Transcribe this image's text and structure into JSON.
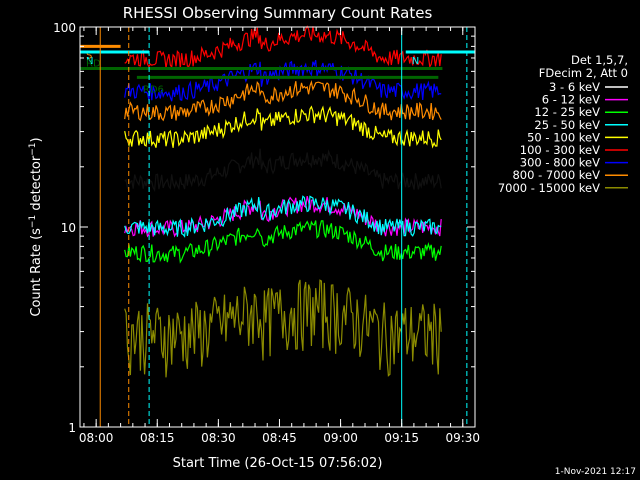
{
  "chart_data": {
    "type": "line",
    "title": "RHESSI Observing Summary Count Rates",
    "xlabel": "Start Time (26-Oct-15 07:56:02)",
    "ylabel_main": "Count Rate (s",
    "ylabel_exp1": "−1",
    "ylabel_mid": " detector",
    "ylabel_exp2": "−1",
    "ylabel_end": ")",
    "y_scale": "log",
    "ylim": [
      1,
      100
    ],
    "xlim": [
      "07:56:02",
      "09:33:00"
    ],
    "y_ticks": [
      {
        "value": 1,
        "label": "1"
      },
      {
        "value": 10,
        "label": "10"
      },
      {
        "value": 100,
        "label": "100"
      }
    ],
    "x_ticks": [
      {
        "value": "08:00",
        "label": "08:00"
      },
      {
        "value": "08:15",
        "label": "08:15"
      },
      {
        "value": "08:30",
        "label": "08:30"
      },
      {
        "value": "08:45",
        "label": "08:45"
      },
      {
        "value": "09:00",
        "label": "09:00"
      },
      {
        "value": "09:15",
        "label": "09:15"
      },
      {
        "value": "09:30",
        "label": "09:30"
      }
    ],
    "legend_position": "right",
    "legend_header": [
      "Det 1,5,7,",
      "FDecim 2, Att 0"
    ],
    "footer_date": "1-Nov-2021 12:17",
    "series": [
      {
        "name": "3 - 6 keV",
        "color": "#ffffff",
        "data_color": "#000000",
        "base": 17,
        "night": true
      },
      {
        "name": "6 - 12 keV",
        "color": "#ff00ff",
        "base": 10,
        "night": true
      },
      {
        "name": "12 - 25 keV",
        "color": "#00ff00",
        "base": 7.5,
        "night": true
      },
      {
        "name": "25 - 50 keV",
        "color": "#00ffff",
        "base": 10,
        "night": true
      },
      {
        "name": "50 - 100 keV",
        "color": "#ffff00",
        "base": 28,
        "night": true
      },
      {
        "name": "100 - 300 keV",
        "color": "#ff0000",
        "base": 70,
        "night": true
      },
      {
        "name": "300 - 800 keV",
        "color": "#0000ff",
        "base": 48,
        "night": true
      },
      {
        "name": "800 - 7000 keV",
        "color": "#ff8c00",
        "base": 38,
        "night": true
      },
      {
        "name": "7000 - 15000 keV",
        "color": "#8b8b00",
        "base": 3,
        "night": true
      }
    ],
    "flags": [
      {
        "label": "S",
        "color": "#ff8c00",
        "start": "07:56:02",
        "end": "08:06",
        "level": 80
      },
      {
        "label": "N",
        "color": "#00ffff",
        "start": "07:56:02",
        "end": "08:13",
        "level": 75
      },
      {
        "label": "N",
        "color": "#00ffff",
        "start": "09:16",
        "end": "09:33",
        "level": 75
      },
      {
        "label": "RD",
        "color": "#006400",
        "start": "07:56:02",
        "end": "09:25",
        "level": 62
      },
      {
        "label": "RD6",
        "color": "#006400",
        "start": "08:10",
        "end": "09:24",
        "level": 56
      }
    ],
    "vertical_markers": [
      {
        "time": "08:01",
        "color": "#ff8c00",
        "style": "solid"
      },
      {
        "time": "08:08",
        "color": "#ff8c00",
        "style": "dashed"
      },
      {
        "time": "08:13",
        "color": "#00ffff",
        "style": "dashed"
      },
      {
        "time": "09:15",
        "color": "#00ffff",
        "style": "solid"
      },
      {
        "time": "09:31",
        "color": "#00ffff",
        "style": "dashed"
      }
    ]
  }
}
